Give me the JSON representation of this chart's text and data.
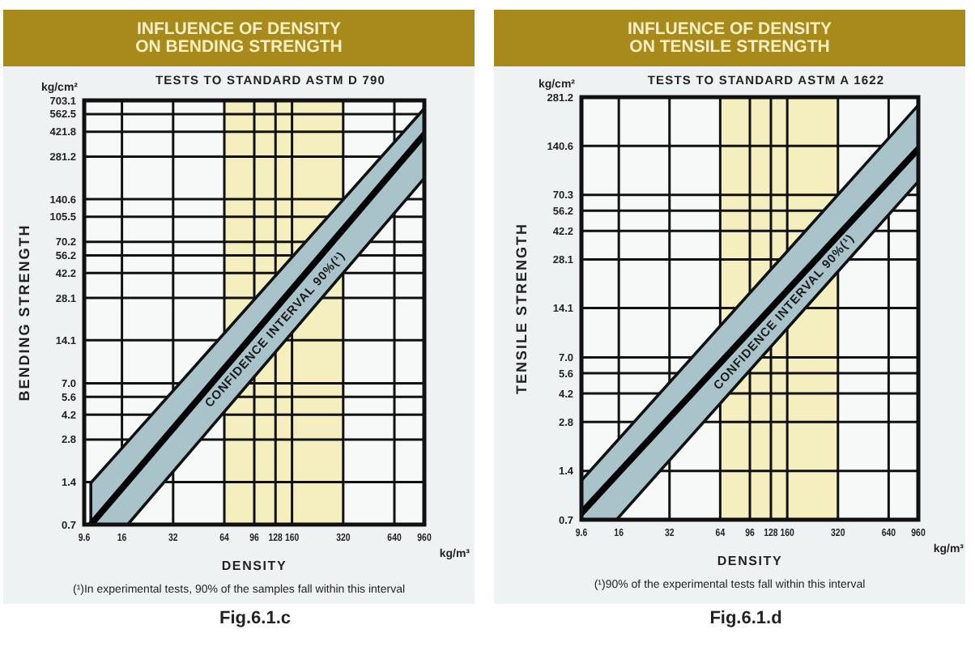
{
  "chart_data": [
    {
      "type": "line",
      "title": "INFLUENCE OF DENSITY\nON BENDING STRENGTH",
      "subtitle": "TESTS TO STANDARD ASTM D 790",
      "xlabel": "DENSITY",
      "ylabel": "BENDING STRENGTH",
      "log": "xy",
      "grid": true,
      "marker": "none",
      "line_style": "solid",
      "xlim": [
        9.6,
        960
      ],
      "xticks": [
        9.6,
        16,
        32,
        64,
        96,
        128,
        160,
        320,
        640,
        960
      ],
      "ylim": [
        0.7,
        703.1
      ],
      "yticks": [
        0.7,
        1.4,
        2.8,
        4.2,
        5.6,
        {
          "value": 7,
          "label": "7.0"
        },
        14.1,
        28.1,
        42.2,
        56.2,
        70.2,
        105.5,
        140.6,
        281.2,
        421.8,
        562.5,
        703.1
      ],
      "bands": [
        {
          "axis": "x",
          "from": 64,
          "to": 320,
          "color": "#f5efbf"
        }
      ],
      "series": [
        {
          "color": "#000000",
          "x": [
            10.5,
            17.3,
            960
          ],
          "values": [
            0.7,
            1.41,
            404
          ],
          "lower": [
            0.7,
            0.7,
            198
          ],
          "upper": [
            1.38,
            2.7,
            616
          ]
        }
      ],
      "annotations": [
        "kg/cm²",
        "kg/m³",
        "CONFIDENCE INTERVAL 90%(¹)",
        "(¹)In experimental tests, 90% of the samples fall within this interval",
        "Fig.6.1.c"
      ]
    },
    {
      "type": "line",
      "title": "INFLUENCE OF DENSITY\nON TENSILE STRENGTH",
      "subtitle": "TESTS TO STANDARD ASTM A 1622",
      "xlabel": "DENSITY",
      "ylabel": "TENSILE STRENGTH",
      "log": "xy",
      "grid": true,
      "marker": "none",
      "line_style": "solid",
      "xlim": [
        9.6,
        960
      ],
      "xticks": [
        9.6,
        16,
        32,
        64,
        96,
        128,
        160,
        320,
        640,
        960
      ],
      "ylim": [
        0.7,
        281.2
      ],
      "yticks": [
        0.7,
        1.4,
        2.8,
        4.2,
        5.6,
        {
          "value": 7,
          "label": "7.0"
        },
        14.1,
        28.1,
        42.2,
        56.2,
        70.3,
        140.6,
        281.2
      ],
      "bands": [
        {
          "axis": "x",
          "from": 64,
          "to": 320,
          "color": "#f5efbf"
        }
      ],
      "series": [
        {
          "color": "#000000",
          "x": [
            9.6,
            15.5,
            960
          ],
          "values": [
            0.77,
            1.32,
            135
          ],
          "lower": [
            0.7,
            0.7,
            85
          ],
          "upper": [
            1.22,
            2.12,
            251
          ]
        }
      ],
      "annotations": [
        "kg/cm²",
        "kg/m³",
        "CONFIDENCE INTERVAL 90%(¹)",
        "(¹)90% of the experimental tests fall within this interval",
        "Fig.6.1.d"
      ]
    }
  ]
}
